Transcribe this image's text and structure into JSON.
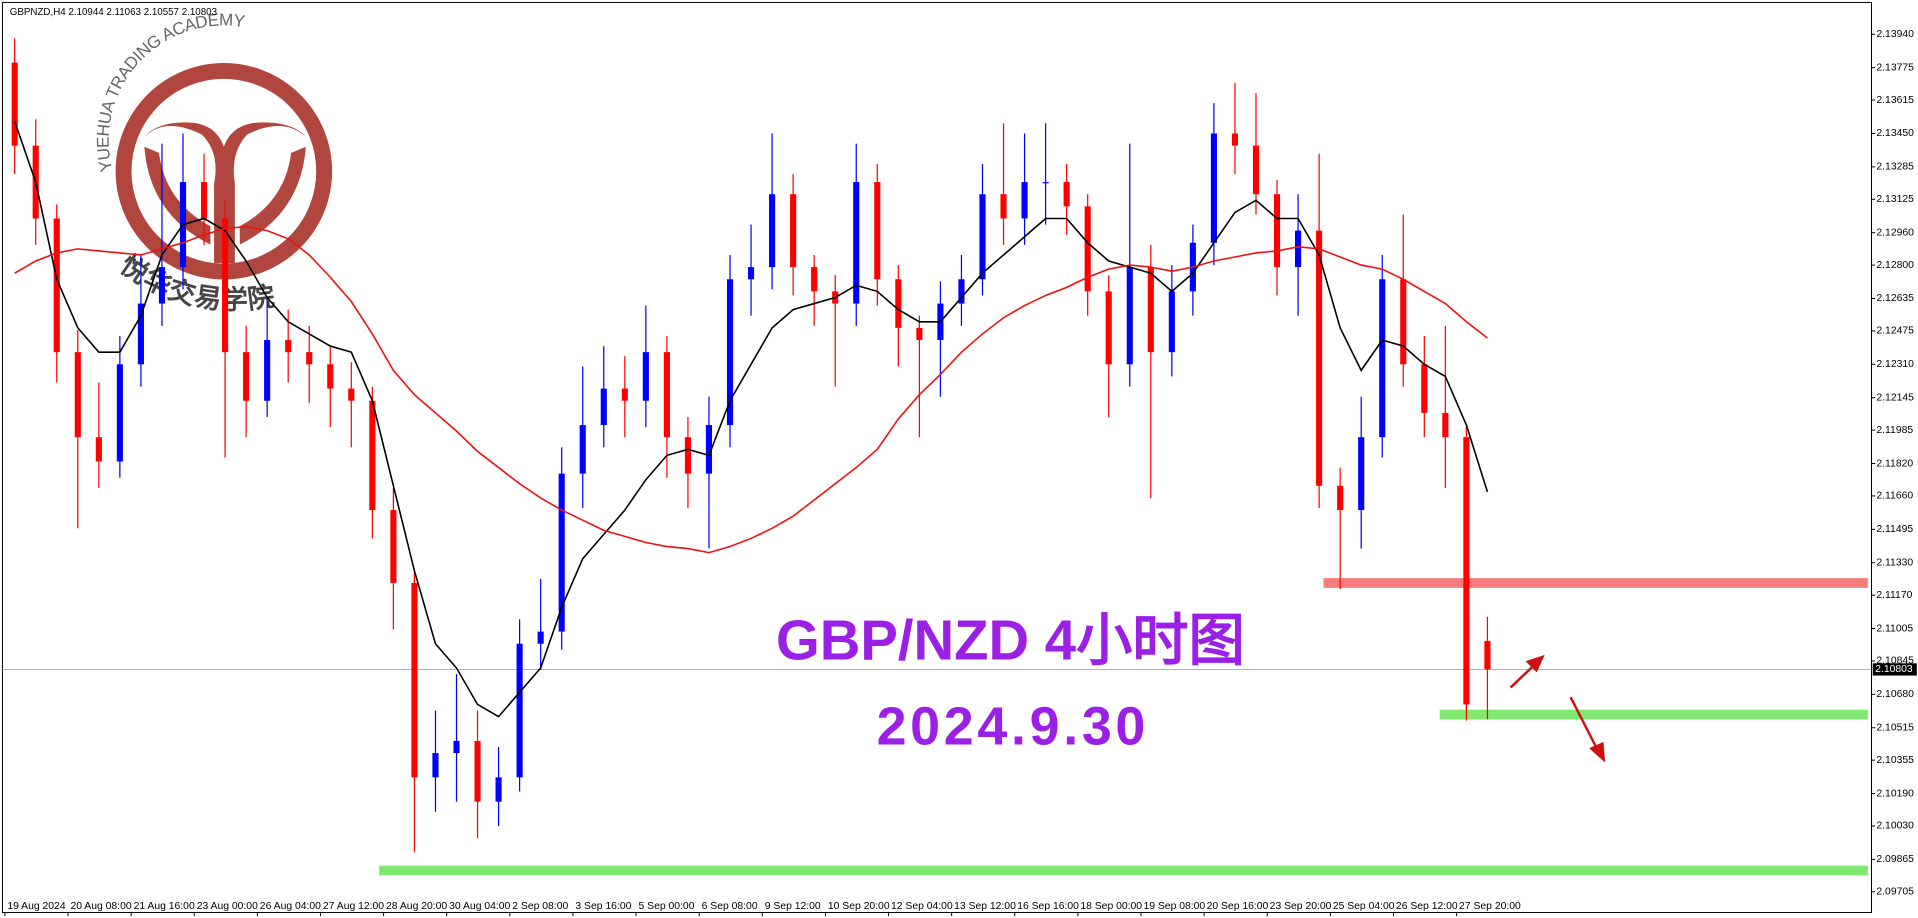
{
  "chart_data": {
    "type": "candlestick",
    "header": "GBPNZD,H4  2.10944 2.11063 2.10557 2.10803",
    "title": "GBP/NZD 4小时图",
    "subtitle": "2024.9.30",
    "logo_text": "YUEHUA TRADING ACADEMY",
    "logo_text_cn": "悦华交易学院",
    "categories": [
      "19 Aug 2024",
      null,
      null,
      "20 Aug 08:00",
      null,
      null,
      "21 Aug 16:00",
      null,
      null,
      "23 Aug 00:00",
      null,
      null,
      "26 Aug 04:00",
      null,
      null,
      "27 Aug 12:00",
      null,
      null,
      "28 Aug 20:00",
      null,
      null,
      "30 Aug 04:00",
      null,
      null,
      "2 Sep 08:00",
      null,
      null,
      "3 Sep 16:00",
      null,
      null,
      "5 Sep 00:00",
      null,
      null,
      "6 Sep 08:00",
      null,
      null,
      "9 Sep 12:00",
      null,
      null,
      "10 Sep 20:00",
      null,
      null,
      "12 Sep 04:00",
      null,
      null,
      "13 Sep 12:00",
      null,
      null,
      "16 Sep 16:00",
      null,
      null,
      "18 Sep 00:00",
      null,
      null,
      "19 Sep 08:00",
      null,
      null,
      "20 Sep 16:00",
      null,
      null,
      "23 Sep 20:00",
      null,
      null,
      "25 Sep 04:00",
      null,
      null,
      "26 Sep 12:00",
      null,
      null,
      "27 Sep 20:00",
      null
    ],
    "open": [
      2.138,
      2.1339,
      2.1303,
      2.1237,
      2.1195,
      2.1183,
      2.1231,
      2.1261,
      2.1279,
      2.1321,
      2.1303,
      2.1237,
      2.1213,
      2.1243,
      2.1237,
      2.1231,
      2.1219,
      2.1213,
      2.1159,
      2.1123,
      2.1027,
      2.1039,
      2.1045,
      2.1015,
      2.1027,
      2.1093,
      2.1099,
      2.1177,
      2.1201,
      2.1219,
      2.1213,
      2.1237,
      2.1195,
      2.1177,
      2.1201,
      2.1273,
      2.1279,
      2.1315,
      2.1279,
      2.1267,
      2.1261,
      2.1321,
      2.1273,
      2.1249,
      2.1243,
      2.1261,
      2.1273,
      2.1315,
      2.1303,
      2.1321,
      2.1321,
      2.1309,
      2.1267,
      2.1231,
      2.1279,
      2.1237,
      2.1267,
      2.1291,
      2.1345,
      2.1339,
      2.1315,
      2.1279,
      2.1297,
      2.1171,
      2.1159,
      2.1195,
      2.1273,
      2.1231,
      2.1207,
      2.1195,
      2.10944
    ],
    "high": [
      2.1392,
      2.1352,
      2.131,
      2.1248,
      2.1222,
      2.1245,
      2.1285,
      2.134,
      2.1345,
      2.1335,
      2.1312,
      2.125,
      2.1262,
      2.1258,
      2.125,
      2.124,
      2.1232,
      2.122,
      2.117,
      2.113,
      2.106,
      2.1078,
      2.106,
      2.1042,
      2.1105,
      2.1125,
      2.119,
      2.123,
      2.124,
      2.1235,
      2.126,
      2.1245,
      2.1205,
      2.1215,
      2.1285,
      2.13,
      2.1345,
      2.1325,
      2.1285,
      2.1275,
      2.134,
      2.133,
      2.128,
      2.1255,
      2.1272,
      2.1285,
      2.133,
      2.135,
      2.1345,
      2.135,
      2.133,
      2.1315,
      2.1275,
      2.134,
      2.129,
      2.128,
      2.13,
      2.136,
      2.137,
      2.1365,
      2.1322,
      2.1315,
      2.1335,
      2.118,
      2.1215,
      2.1285,
      2.1305,
      2.1245,
      2.125,
      2.12,
      2.11063
    ],
    "low": [
      2.1325,
      2.129,
      2.1222,
      2.115,
      2.117,
      2.1175,
      2.122,
      2.125,
      2.1268,
      2.129,
      2.1185,
      2.1195,
      2.1205,
      2.1222,
      2.1212,
      2.12,
      2.119,
      2.1145,
      2.11,
      2.099,
      2.101,
      2.1015,
      2.0997,
      2.1003,
      2.102,
      2.108,
      2.109,
      2.116,
      2.119,
      2.1195,
      2.12,
      2.1175,
      2.116,
      2.114,
      2.119,
      2.1255,
      2.1268,
      2.1265,
      2.125,
      2.122,
      2.125,
      2.126,
      2.123,
      2.1195,
      2.1215,
      2.125,
      2.1265,
      2.129,
      2.129,
      2.13,
      2.1295,
      2.1255,
      2.1205,
      2.122,
      2.1165,
      2.1225,
      2.1255,
      2.128,
      2.1325,
      2.1305,
      2.1265,
      2.1255,
      2.116,
      2.112,
      2.114,
      2.1185,
      2.122,
      2.1195,
      2.117,
      2.1055,
      2.10557
    ],
    "close": [
      2.1339,
      2.1303,
      2.1237,
      2.1195,
      2.1183,
      2.1231,
      2.1261,
      2.1279,
      2.1321,
      2.1303,
      2.1237,
      2.1213,
      2.1243,
      2.1237,
      2.1231,
      2.1219,
      2.1213,
      2.1159,
      2.1123,
      2.1027,
      2.1039,
      2.1045,
      2.1015,
      2.1027,
      2.1093,
      2.1099,
      2.1177,
      2.1201,
      2.1219,
      2.1213,
      2.1237,
      2.1195,
      2.1177,
      2.1201,
      2.1273,
      2.1279,
      2.1315,
      2.1279,
      2.1267,
      2.1261,
      2.1321,
      2.1273,
      2.1249,
      2.1243,
      2.1261,
      2.1273,
      2.1315,
      2.1303,
      2.1321,
      2.1321,
      2.1309,
      2.1267,
      2.1231,
      2.1279,
      2.1237,
      2.1267,
      2.1291,
      2.1345,
      2.1339,
      2.1315,
      2.1279,
      2.1297,
      2.1171,
      2.1159,
      2.1195,
      2.1273,
      2.1231,
      2.1207,
      2.1195,
      2.1063,
      2.10803
    ],
    "up_color": "#0000ff",
    "down_color": "#ff0000",
    "lines": [
      {
        "color": "#000000",
        "values": [
          2.1351,
          2.1321,
          2.1273,
          2.1249,
          2.1237,
          2.1237,
          2.1255,
          2.1285,
          2.13,
          2.1303,
          2.1297,
          2.1282,
          2.1264,
          2.1252,
          2.1246,
          2.124,
          2.1237,
          2.1213,
          2.1171,
          2.1129,
          2.1093,
          2.1081,
          2.1063,
          2.1057,
          2.1069,
          2.1081,
          2.1111,
          2.1135,
          2.1147,
          2.1159,
          2.1174,
          2.1186,
          2.1189,
          2.1186,
          2.1213,
          2.1231,
          2.1249,
          2.1258,
          2.1261,
          2.1264,
          2.127,
          2.1267,
          2.1258,
          2.1252,
          2.1252,
          2.1264,
          2.1276,
          2.1285,
          2.1294,
          2.1303,
          2.1303,
          2.1291,
          2.1282,
          2.1279,
          2.1276,
          2.1267,
          2.1276,
          2.1291,
          2.1306,
          2.1312,
          2.1303,
          2.1303,
          2.1285,
          2.1249,
          2.1228,
          2.1243,
          2.124,
          2.1231,
          2.1225,
          2.1201,
          2.1168
        ]
      },
      {
        "color": "#ee1111",
        "values": [
          2.1276,
          2.1282,
          2.1286,
          2.1288,
          2.1287,
          2.1286,
          2.1285,
          2.1288,
          2.1291,
          2.1295,
          2.1298,
          2.1299,
          2.1297,
          2.1293,
          2.1285,
          2.1274,
          2.1262,
          2.1246,
          2.1228,
          2.1216,
          2.1207,
          2.1198,
          2.1188,
          2.118,
          2.1172,
          2.1165,
          2.1159,
          2.1154,
          2.1149,
          2.1146,
          2.1143,
          2.1141,
          2.114,
          2.1138,
          2.1141,
          2.1145,
          2.115,
          2.1156,
          2.1164,
          2.1172,
          2.118,
          2.1189,
          2.1204,
          2.1216,
          2.1226,
          2.1237,
          2.1246,
          2.1254,
          2.126,
          2.1265,
          2.1269,
          2.1274,
          2.1278,
          2.128,
          2.1279,
          2.1277,
          2.1279,
          2.1282,
          2.1284,
          2.1286,
          2.1287,
          2.1289,
          2.1288,
          2.1284,
          2.128,
          2.1278,
          2.1273,
          2.1267,
          2.1261,
          2.1252,
          2.1244
        ]
      }
    ],
    "levels": [
      {
        "value": 2.1123,
        "color": "#f47c7c"
      },
      {
        "value": 2.1058,
        "color": "#80e870"
      },
      {
        "value": 2.0981,
        "color": "#80e870"
      }
    ],
    "last_price": {
      "value": 2.10803,
      "label": "2.10803"
    },
    "ylim": [
      2.09657,
      2.14085
    ],
    "yticks": [
      {
        "value": 2.1394,
        "label": "2.13940"
      },
      {
        "value": 2.13775,
        "label": "2.13775"
      },
      {
        "value": 2.13615,
        "label": "2.13615"
      },
      {
        "value": 2.1345,
        "label": "2.13450"
      },
      {
        "value": 2.13285,
        "label": "2.13285"
      },
      {
        "value": 2.13125,
        "label": "2.13125"
      },
      {
        "value": 2.1296,
        "label": "2.12960"
      },
      {
        "value": 2.128,
        "label": "2.12800"
      },
      {
        "value": 2.12635,
        "label": "2.12635"
      },
      {
        "value": 2.12475,
        "label": "2.12475"
      },
      {
        "value": 2.1231,
        "label": "2.12310"
      },
      {
        "value": 2.12145,
        "label": "2.12145"
      },
      {
        "value": 2.11985,
        "label": "2.11985"
      },
      {
        "value": 2.1182,
        "label": "2.11820"
      },
      {
        "value": 2.1166,
        "label": "2.11660"
      },
      {
        "value": 2.11495,
        "label": "2.11495"
      },
      {
        "value": 2.1133,
        "label": "2.11330"
      },
      {
        "value": 2.1117,
        "label": "2.11170"
      },
      {
        "value": 2.11005,
        "label": "2.11005"
      },
      {
        "value": 2.10845,
        "label": "2.10845"
      },
      {
        "value": 2.1068,
        "label": "2.10680"
      },
      {
        "value": 2.10515,
        "label": "2.10515"
      },
      {
        "value": 2.10355,
        "label": "2.10355"
      },
      {
        "value": 2.1019,
        "label": "2.10190"
      },
      {
        "value": 2.1003,
        "label": "2.10030"
      },
      {
        "value": 2.09865,
        "label": "2.09865"
      },
      {
        "value": 2.09705,
        "label": "2.09705"
      }
    ],
    "grid": false
  }
}
